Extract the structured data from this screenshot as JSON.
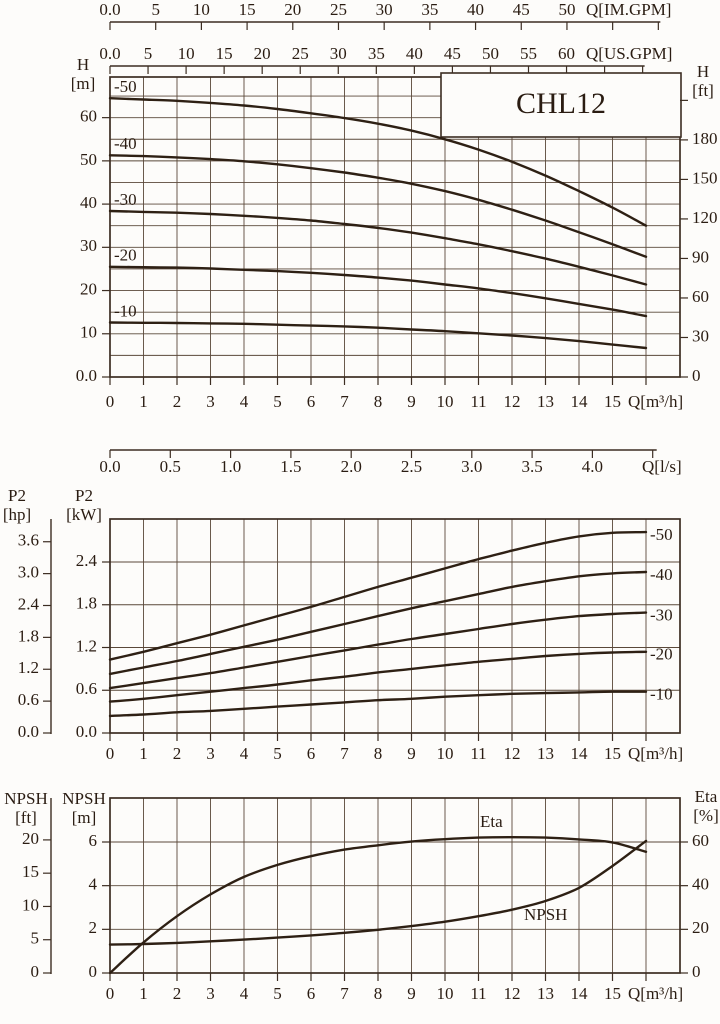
{
  "colors": {
    "ink": "#2a1c12",
    "grid": "#5a4839",
    "frame": "#3c2d22",
    "curve": "#2e2014",
    "background": "#fdfcfa"
  },
  "header_axes": {
    "im_gpm": {
      "unit": "Q[IM.GPM]",
      "labels": [
        "0.0",
        "5",
        "10",
        "15",
        "20",
        "25",
        "30",
        "35",
        "40",
        "45",
        "50"
      ],
      "label_values": [
        0,
        5,
        10,
        15,
        20,
        25,
        30,
        35,
        40,
        45,
        50
      ],
      "tick_values": [
        0,
        5,
        10,
        15,
        20,
        25,
        30,
        35,
        40,
        45,
        50,
        55,
        60
      ]
    },
    "us_gpm": {
      "unit": "Q[US.GPM]",
      "labels": [
        "0.0",
        "5",
        "10",
        "15",
        "20",
        "25",
        "30",
        "35",
        "40",
        "45",
        "50",
        "55",
        "60"
      ],
      "label_values": [
        0,
        5,
        10,
        15,
        20,
        25,
        30,
        35,
        40,
        45,
        50,
        55,
        60
      ],
      "tick_values": [
        0,
        5,
        10,
        15,
        20,
        25,
        30,
        35,
        40,
        45,
        50,
        55,
        60,
        65,
        70
      ]
    },
    "ls": {
      "unit": "Q[l/s]",
      "labels": [
        "0.0",
        "0.5",
        "1.0",
        "1.5",
        "2.0",
        "2.5",
        "3.0",
        "3.5",
        "4.0"
      ],
      "label_values": [
        0,
        0.5,
        1,
        1.5,
        2,
        2.5,
        3,
        3.5,
        4
      ],
      "tick_values": [
        0,
        0.5,
        1,
        1.5,
        2,
        2.5,
        3,
        3.5,
        4,
        4.5
      ]
    }
  },
  "x_axis_shared": {
    "unit": "Q[m³/h]",
    "labels": [
      "0",
      "1",
      "2",
      "3",
      "4",
      "5",
      "6",
      "7",
      "8",
      "9",
      "10",
      "11",
      "12",
      "13",
      "14",
      "15"
    ],
    "label_values": [
      0,
      1,
      2,
      3,
      4,
      5,
      6,
      7,
      8,
      9,
      10,
      11,
      12,
      13,
      14,
      15
    ],
    "tick_values": [
      0,
      1,
      2,
      3,
      4,
      5,
      6,
      7,
      8,
      9,
      10,
      11,
      12,
      13,
      14,
      15,
      16
    ]
  },
  "chart_data": [
    {
      "type": "line",
      "title": "CHL12",
      "xlabel": "Q[m³/h]",
      "x": [
        0,
        1,
        2,
        3,
        4,
        5,
        6,
        7,
        8,
        9,
        10,
        11,
        12,
        13,
        14,
        15,
        16
      ],
      "xlim": [
        0,
        17
      ],
      "ylim": [
        0,
        69.4
      ],
      "ylabel": "H [m]",
      "ylabel_right": "H [ft]",
      "grid": "on",
      "y_left": {
        "title_top": "H",
        "title_bottom": "[m]",
        "labels": [
          "0.0",
          "10",
          "20",
          "30",
          "40",
          "50",
          "60"
        ],
        "values": [
          0,
          10,
          20,
          30,
          40,
          50,
          60
        ],
        "grid_values": [
          5,
          10,
          15,
          20,
          25,
          30,
          35,
          40,
          45,
          50,
          55,
          60,
          65
        ]
      },
      "y_right": {
        "title_top": "H",
        "title_bottom": "[ft]",
        "labels": [
          "0",
          "30",
          "60",
          "90",
          "120",
          "150",
          "180"
        ],
        "values": [
          0,
          30,
          60,
          90,
          120,
          150,
          180
        ],
        "extra_tick_values": [
          210
        ]
      },
      "series": [
        {
          "name": "-50",
          "values": [
            64.5,
            64.2,
            63.9,
            63.4,
            62.8,
            62.0,
            61.0,
            59.9,
            58.6,
            57.0,
            55.0,
            52.6,
            49.8,
            46.6,
            43.0,
            39.2,
            35.0
          ]
        },
        {
          "name": "-40",
          "values": [
            51.3,
            51.1,
            50.8,
            50.4,
            49.9,
            49.2,
            48.3,
            47.3,
            46.1,
            44.7,
            43.0,
            41.0,
            38.7,
            36.2,
            33.5,
            30.7,
            27.8
          ]
        },
        {
          "name": "-30",
          "values": [
            38.4,
            38.2,
            38.0,
            37.7,
            37.3,
            36.8,
            36.2,
            35.4,
            34.5,
            33.4,
            32.1,
            30.7,
            29.1,
            27.4,
            25.5,
            23.5,
            21.4
          ]
        },
        {
          "name": "-20",
          "values": [
            25.5,
            25.4,
            25.3,
            25.1,
            24.8,
            24.5,
            24.1,
            23.6,
            23.0,
            22.3,
            21.4,
            20.5,
            19.4,
            18.2,
            16.9,
            15.6,
            14.1
          ]
        },
        {
          "name": "-10",
          "values": [
            12.6,
            12.55,
            12.5,
            12.4,
            12.3,
            12.1,
            11.9,
            11.7,
            11.4,
            11.0,
            10.6,
            10.1,
            9.6,
            9.0,
            8.3,
            7.5,
            6.7
          ]
        }
      ]
    },
    {
      "type": "line",
      "title": "",
      "xlabel": "Q[m³/h]",
      "x": [
        0,
        1,
        2,
        3,
        4,
        5,
        6,
        7,
        8,
        9,
        10,
        11,
        12,
        13,
        14,
        15,
        16
      ],
      "xlim": [
        0,
        17
      ],
      "ylim": [
        0,
        3.0
      ],
      "ylabel": "P2 [kW]",
      "ylabel_outer": "P2 [hp]",
      "grid": "on",
      "y_left_outer": {
        "title_top": "P2",
        "title_bottom": "[hp]",
        "labels": [
          "0.0",
          "0.6",
          "1.2",
          "1.8",
          "2.4",
          "3.0",
          "3.6"
        ],
        "values": [
          0,
          0.6,
          1.2,
          1.8,
          2.4,
          3.0,
          3.6
        ]
      },
      "y_left": {
        "title_top": "P2",
        "title_bottom": "[kW]",
        "labels": [
          "0.0",
          "0.6",
          "1.2",
          "1.8",
          "2.4"
        ],
        "values": [
          0,
          0.6,
          1.2,
          1.8,
          2.4
        ],
        "grid_values": [
          0.6,
          1.2,
          1.8,
          2.4
        ]
      },
      "series": [
        {
          "name": "-50",
          "values": [
            1.03,
            1.14,
            1.26,
            1.38,
            1.51,
            1.64,
            1.77,
            1.91,
            2.05,
            2.18,
            2.31,
            2.44,
            2.56,
            2.67,
            2.76,
            2.81,
            2.82
          ]
        },
        {
          "name": "-40",
          "values": [
            0.83,
            0.92,
            1.01,
            1.11,
            1.21,
            1.31,
            1.42,
            1.53,
            1.64,
            1.75,
            1.85,
            1.95,
            2.05,
            2.13,
            2.2,
            2.24,
            2.26
          ]
        },
        {
          "name": "-30",
          "values": [
            0.63,
            0.7,
            0.77,
            0.84,
            0.92,
            1.0,
            1.08,
            1.16,
            1.24,
            1.32,
            1.39,
            1.46,
            1.53,
            1.59,
            1.64,
            1.67,
            1.69
          ]
        },
        {
          "name": "-20",
          "values": [
            0.44,
            0.48,
            0.53,
            0.58,
            0.63,
            0.68,
            0.74,
            0.79,
            0.85,
            0.9,
            0.95,
            1.0,
            1.04,
            1.08,
            1.11,
            1.13,
            1.14
          ]
        },
        {
          "name": "-10",
          "values": [
            0.24,
            0.26,
            0.29,
            0.31,
            0.34,
            0.37,
            0.4,
            0.43,
            0.46,
            0.48,
            0.51,
            0.53,
            0.55,
            0.56,
            0.57,
            0.58,
            0.58
          ]
        }
      ]
    },
    {
      "type": "line",
      "title": "",
      "xlabel": "Q[m³/h]",
      "x": [
        0,
        1,
        2,
        3,
        4,
        5,
        6,
        7,
        8,
        9,
        10,
        11,
        12,
        13,
        14,
        15,
        16
      ],
      "xlim": [
        0,
        17
      ],
      "ylim_npsh_m": [
        0,
        8
      ],
      "ylim_eta_pct": [
        0,
        80
      ],
      "ylabel": "NPSH [m]",
      "ylabel_outer": "NPSH [ft]",
      "ylabel_right": "Eta [%]",
      "grid": "on",
      "y_left_outer": {
        "title_top": "NPSH",
        "title_bottom": "[ft]",
        "labels": [
          "0",
          "5",
          "10",
          "15",
          "20"
        ],
        "values": [
          0,
          5,
          10,
          15,
          20
        ]
      },
      "y_left": {
        "title_top": "NPSH",
        "title_bottom": "[m]",
        "labels": [
          "0",
          "2",
          "4",
          "6"
        ],
        "values": [
          0,
          2,
          4,
          6
        ],
        "grid_values": [
          2,
          4,
          6
        ]
      },
      "y_right": {
        "title_top": "Eta",
        "title_bottom": "[%]",
        "labels": [
          "0",
          "20",
          "40",
          "60"
        ],
        "values": [
          0,
          20,
          40,
          60
        ]
      },
      "series": [
        {
          "name": "Eta",
          "unit": "%",
          "values": [
            0,
            14,
            26,
            36,
            44,
            49.5,
            53.5,
            56.5,
            58.5,
            60.2,
            61.3,
            62.0,
            62.2,
            62.0,
            61.2,
            59.8,
            55.5
          ]
        },
        {
          "name": "NPSH",
          "unit": "m",
          "values": [
            1.3,
            1.33,
            1.38,
            1.45,
            1.53,
            1.62,
            1.72,
            1.84,
            1.98,
            2.15,
            2.35,
            2.6,
            2.9,
            3.3,
            3.9,
            4.9,
            6.05
          ]
        }
      ]
    }
  ]
}
